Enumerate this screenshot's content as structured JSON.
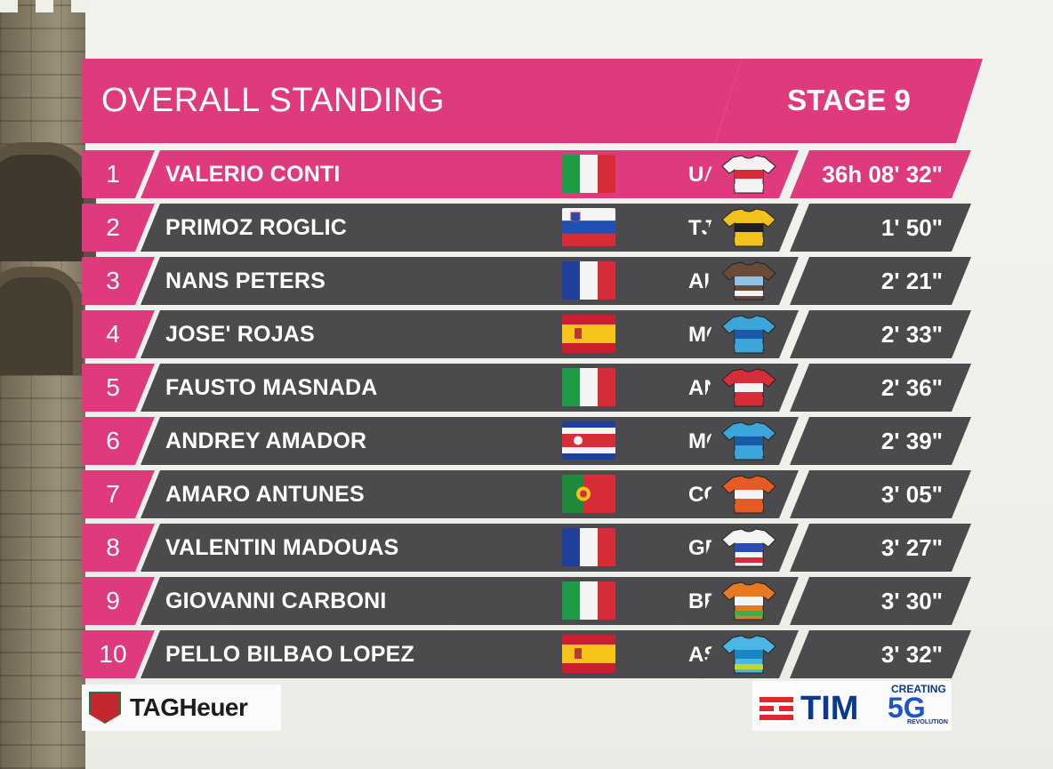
{
  "header": {
    "title": "OVERALL STANDING",
    "stage": "STAGE 9"
  },
  "colors": {
    "accent_pink": "#e03a7f",
    "row_gray": "#4b4b4d"
  },
  "standings": [
    {
      "pos": "1",
      "name": "VALERIO CONTI",
      "team": "UAD",
      "time": "36h 08' 32\"",
      "flag": "italy",
      "jersey": "white-red-jersey"
    },
    {
      "pos": "2",
      "name": "PRIMOZ ROGLIC",
      "team": "TJV",
      "time": "1' 50\"",
      "flag": "slovenia",
      "jersey": "yellow-black-jersey"
    },
    {
      "pos": "3",
      "name": "NANS PETERS",
      "team": "ALM",
      "time": "2' 21\"",
      "flag": "france",
      "jersey": "brown-blue-jersey"
    },
    {
      "pos": "4",
      "name": "JOSE' ROJAS",
      "team": "MOV",
      "time": "2' 33\"",
      "flag": "spain",
      "jersey": "blue-m-jersey"
    },
    {
      "pos": "5",
      "name": "FAUSTO MASNADA",
      "team": "ANS",
      "time": "2' 36\"",
      "flag": "italy",
      "jersey": "red-white-jersey"
    },
    {
      "pos": "6",
      "name": "ANDREY AMADOR",
      "team": "MOV",
      "time": "2' 39\"",
      "flag": "costa-rica",
      "jersey": "blue-m-jersey"
    },
    {
      "pos": "7",
      "name": "AMARO ANTUNES",
      "team": "CCC",
      "time": "3' 05\"",
      "flag": "portugal",
      "jersey": "orange-jersey"
    },
    {
      "pos": "8",
      "name": "VALENTIN MADOUAS",
      "team": "GFC",
      "time": "3' 27\"",
      "flag": "france",
      "jersey": "white-blue-red-jersey"
    },
    {
      "pos": "9",
      "name": "GIOVANNI CARBONI",
      "team": "BRD",
      "time": "3' 30\"",
      "flag": "italy",
      "jersey": "orange-green-jersey"
    },
    {
      "pos": "10",
      "name": "PELLO BILBAO LOPEZ",
      "team": "AST",
      "time": "3' 32\"",
      "flag": "spain",
      "jersey": "cyan-jersey"
    }
  ],
  "sponsors": {
    "tag": "TAGHeuer",
    "tim": "TIM",
    "c5g_top": "CREATING",
    "c5g_mid": "5G",
    "c5g_bot": "REVOLUTION"
  }
}
